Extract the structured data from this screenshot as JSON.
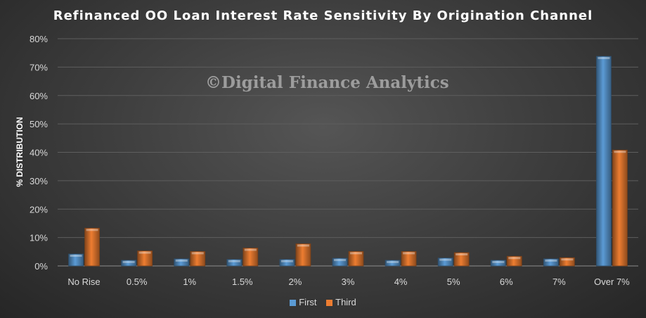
{
  "chart_data": {
    "type": "bar",
    "title": "Refinanced OO Loan Interest Rate Sensitivity By Origination Channel",
    "watermark": "©Digital Finance Analytics",
    "ylabel": "% DISTRIBUTION",
    "xlabel": "",
    "ylim": [
      0,
      80
    ],
    "yticks": [
      "0%",
      "10%",
      "20%",
      "30%",
      "40%",
      "50%",
      "60%",
      "70%",
      "80%"
    ],
    "grid": true,
    "legend_position": "bottom",
    "categories": [
      "No Rise",
      "0.5%",
      "1%",
      "1.5%",
      "2%",
      "3%",
      "4%",
      "5%",
      "6%",
      "7%",
      "Over 7%"
    ],
    "series": [
      {
        "name": "First",
        "color": "#5b9bd5",
        "values": [
          4.2,
          2.0,
          2.5,
          2.3,
          2.3,
          2.7,
          2.0,
          2.8,
          2.0,
          2.5,
          73.8
        ]
      },
      {
        "name": "Third",
        "color": "#ed7d31",
        "values": [
          13.3,
          5.3,
          5.1,
          6.3,
          7.8,
          5.1,
          5.1,
          4.7,
          3.4,
          2.9,
          40.8
        ]
      }
    ]
  }
}
